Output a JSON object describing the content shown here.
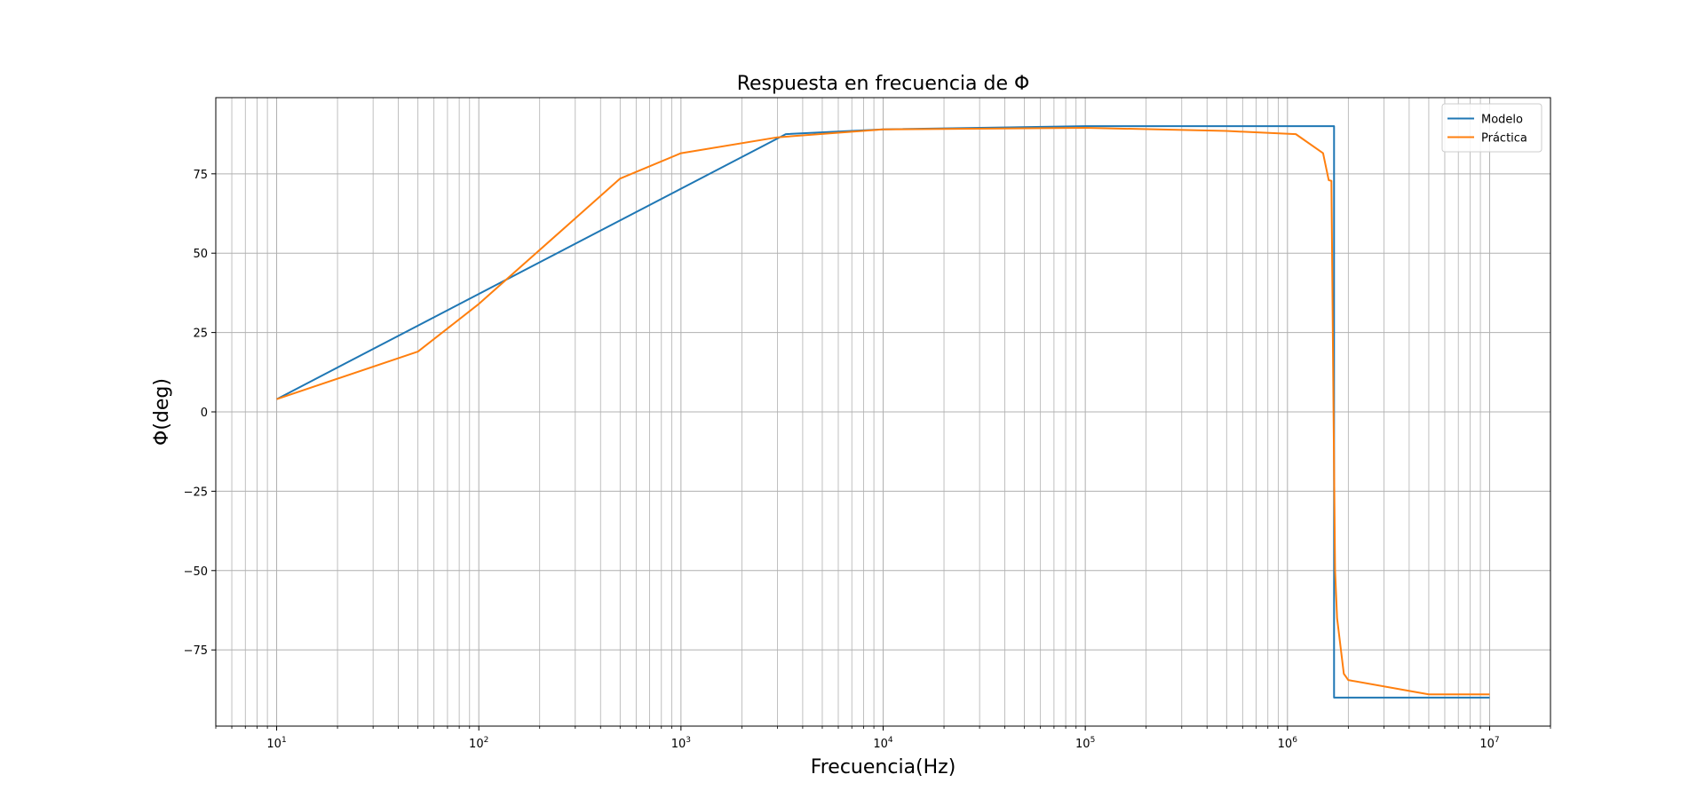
{
  "chart_data": {
    "type": "line",
    "title": "Respuesta en frecuencia de Φ",
    "xlabel": "Frecuencia(Hz)",
    "ylabel": "Φ(deg)",
    "x_scale": "log",
    "xlim": [
      5,
      20000000
    ],
    "ylim": [
      -99,
      99
    ],
    "grid": true,
    "grid_minor_x": true,
    "legend_position": "top-right",
    "x_ticks": [
      {
        "value": 10,
        "base": "10",
        "exp": "1"
      },
      {
        "value": 100,
        "base": "10",
        "exp": "2"
      },
      {
        "value": 1000,
        "base": "10",
        "exp": "3"
      },
      {
        "value": 10000,
        "base": "10",
        "exp": "4"
      },
      {
        "value": 100000,
        "base": "10",
        "exp": "5"
      },
      {
        "value": 1000000,
        "base": "10",
        "exp": "6"
      },
      {
        "value": 10000000,
        "base": "10",
        "exp": "7"
      }
    ],
    "y_ticks": [
      {
        "value": 75,
        "label": "75"
      },
      {
        "value": 50,
        "label": "50"
      },
      {
        "value": 25,
        "label": "25"
      },
      {
        "value": 0,
        "label": "0"
      },
      {
        "value": -25,
        "label": "−25"
      },
      {
        "value": -50,
        "label": "−50"
      },
      {
        "value": -75,
        "label": "−75"
      }
    ],
    "series": [
      {
        "name": "Modelo",
        "color": "#1f77b4",
        "points": [
          [
            10,
            4
          ],
          [
            3300,
            87.5
          ],
          [
            10000,
            89
          ],
          [
            100000,
            90
          ],
          [
            1000000,
            90
          ],
          [
            1700000,
            90
          ],
          [
            1700000,
            -90
          ],
          [
            10000000,
            -90
          ]
        ]
      },
      {
        "name": "Práctica",
        "color": "#ff7f0e",
        "points": [
          [
            10,
            4
          ],
          [
            50,
            19
          ],
          [
            100,
            34
          ],
          [
            500,
            73.5
          ],
          [
            1000,
            81.5
          ],
          [
            3000,
            86.5
          ],
          [
            10000,
            89
          ],
          [
            100000,
            89.5
          ],
          [
            500000,
            88.5
          ],
          [
            1100000,
            87.5
          ],
          [
            1500000,
            81.5
          ],
          [
            1600000,
            73
          ],
          [
            1650000,
            72.8
          ],
          [
            1690000,
            0
          ],
          [
            1720000,
            -50
          ],
          [
            1760000,
            -65
          ],
          [
            1900000,
            -82.5
          ],
          [
            2000000,
            -84.5
          ],
          [
            5000000,
            -89
          ],
          [
            10000000,
            -89
          ]
        ]
      }
    ]
  }
}
